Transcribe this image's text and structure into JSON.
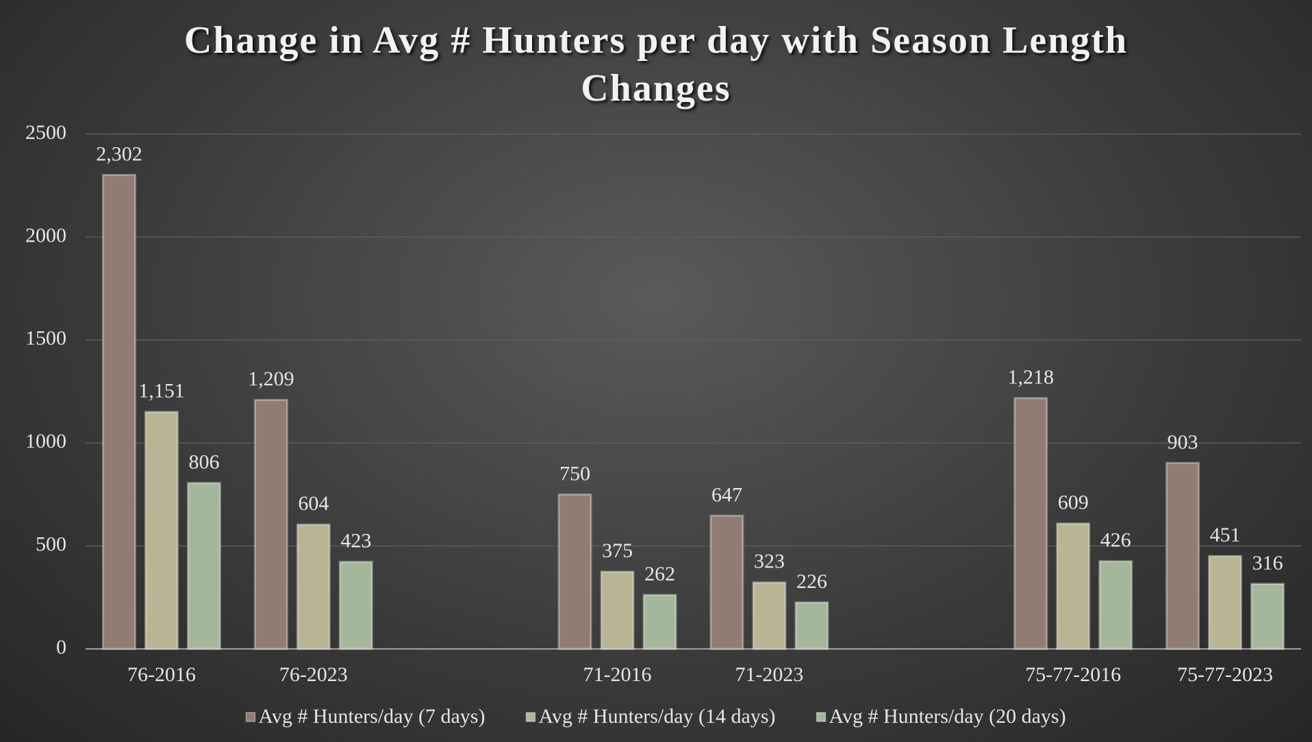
{
  "chart_data": {
    "type": "bar",
    "title": "Change in Avg # Hunters per day with Season Length Changes",
    "categories": [
      "76-2016",
      "76-2023",
      null,
      "71-2016",
      "71-2023",
      null,
      "75-77-2016",
      "75-77-2023"
    ],
    "series": [
      {
        "name": "Avg # Hunters/day (7 days)",
        "color": "#8f7d74",
        "values": [
          2302,
          1209,
          null,
          750,
          647,
          null,
          1218,
          903
        ],
        "value_labels": [
          "2,302",
          "1,209",
          null,
          "750",
          "647",
          null,
          "1,218",
          "903"
        ]
      },
      {
        "name": "Avg # Hunters/day (14 days)",
        "color": "#b9b494",
        "values": [
          1151,
          604,
          null,
          375,
          323,
          null,
          609,
          451
        ],
        "value_labels": [
          "1,151",
          "604",
          null,
          "375",
          "323",
          null,
          "609",
          "451"
        ]
      },
      {
        "name": "Avg # Hunters/day (20 days)",
        "color": "#a5b79b",
        "values": [
          806,
          423,
          null,
          262,
          226,
          null,
          426,
          316
        ],
        "value_labels": [
          "806",
          "423",
          null,
          "262",
          "226",
          null,
          "426",
          "316"
        ]
      }
    ],
    "ylim": [
      0,
      2500
    ],
    "yticks": [
      0,
      500,
      1000,
      1500,
      2000,
      2500
    ],
    "grid": true,
    "legend": "bottom"
  }
}
